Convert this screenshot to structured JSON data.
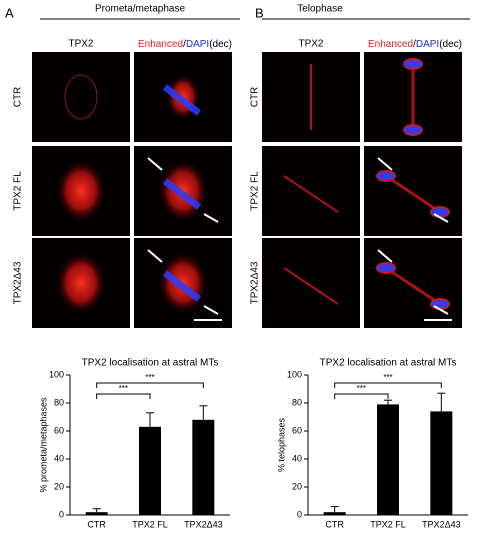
{
  "panels": [
    {
      "label": "A",
      "heading": "Prometa/metaphase",
      "columns": [
        "TPX2"
      ],
      "column_parts": [
        "Enhanced",
        "/",
        "DAPI",
        "(dec)"
      ],
      "rows": [
        "CTR",
        "TPX2 FL",
        "TPX2Δ43"
      ]
    },
    {
      "label": "B",
      "heading": "Telophase",
      "columns": [
        "TPX2"
      ],
      "column_parts": [
        "Enhanced",
        "/",
        "DAPI",
        "(dec)"
      ],
      "rows": [
        "CTR",
        "TPX2 FL",
        "TPX2Δ43"
      ]
    }
  ],
  "chart_data": [
    {
      "type": "bar",
      "title": "TPX2 localisation at astral MTs",
      "y_label": "% prometa/metaphases",
      "categories": [
        "CTR",
        "TPX2 FL",
        "TPX2Δ43"
      ],
      "values": [
        2,
        63,
        68
      ],
      "errors": [
        2.5,
        10,
        10
      ],
      "color": "#000000",
      "ylim": [
        0,
        100
      ],
      "yticks": [
        0,
        20,
        40,
        60,
        80,
        100
      ],
      "annotations": [
        "***",
        "***"
      ]
    },
    {
      "type": "bar",
      "title": "TPX2 localisation at astral MTs",
      "y_label": "% telophases",
      "categories": [
        "CTR",
        "TPX2 FL",
        "TPX2Δ43"
      ],
      "values": [
        2,
        79,
        74
      ],
      "errors": [
        4,
        3,
        13
      ],
      "color": "#000000",
      "ylim": [
        0,
        100
      ],
      "yticks": [
        0,
        20,
        40,
        60,
        80,
        100
      ],
      "annotations": [
        "***",
        "***"
      ]
    }
  ]
}
